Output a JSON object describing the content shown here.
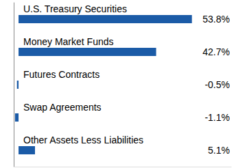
{
  "chart_data": {
    "type": "bar",
    "orientation": "horizontal",
    "categories": [
      "U.S. Treasury Securities",
      "Money Market Funds",
      "Futures Contracts",
      "Swap Agreements",
      "Other Assets Less Liabilities"
    ],
    "values": [
      53.8,
      42.7,
      -0.5,
      -1.1,
      5.1
    ],
    "value_labels": [
      "53.8%",
      "42.7%",
      "-0.5%",
      "-1.1%",
      "5.1%"
    ],
    "color": "#1b5ba7",
    "xlim": [
      -1.5,
      66
    ],
    "grid": false,
    "data_labels": true,
    "tick_labels": false
  }
}
